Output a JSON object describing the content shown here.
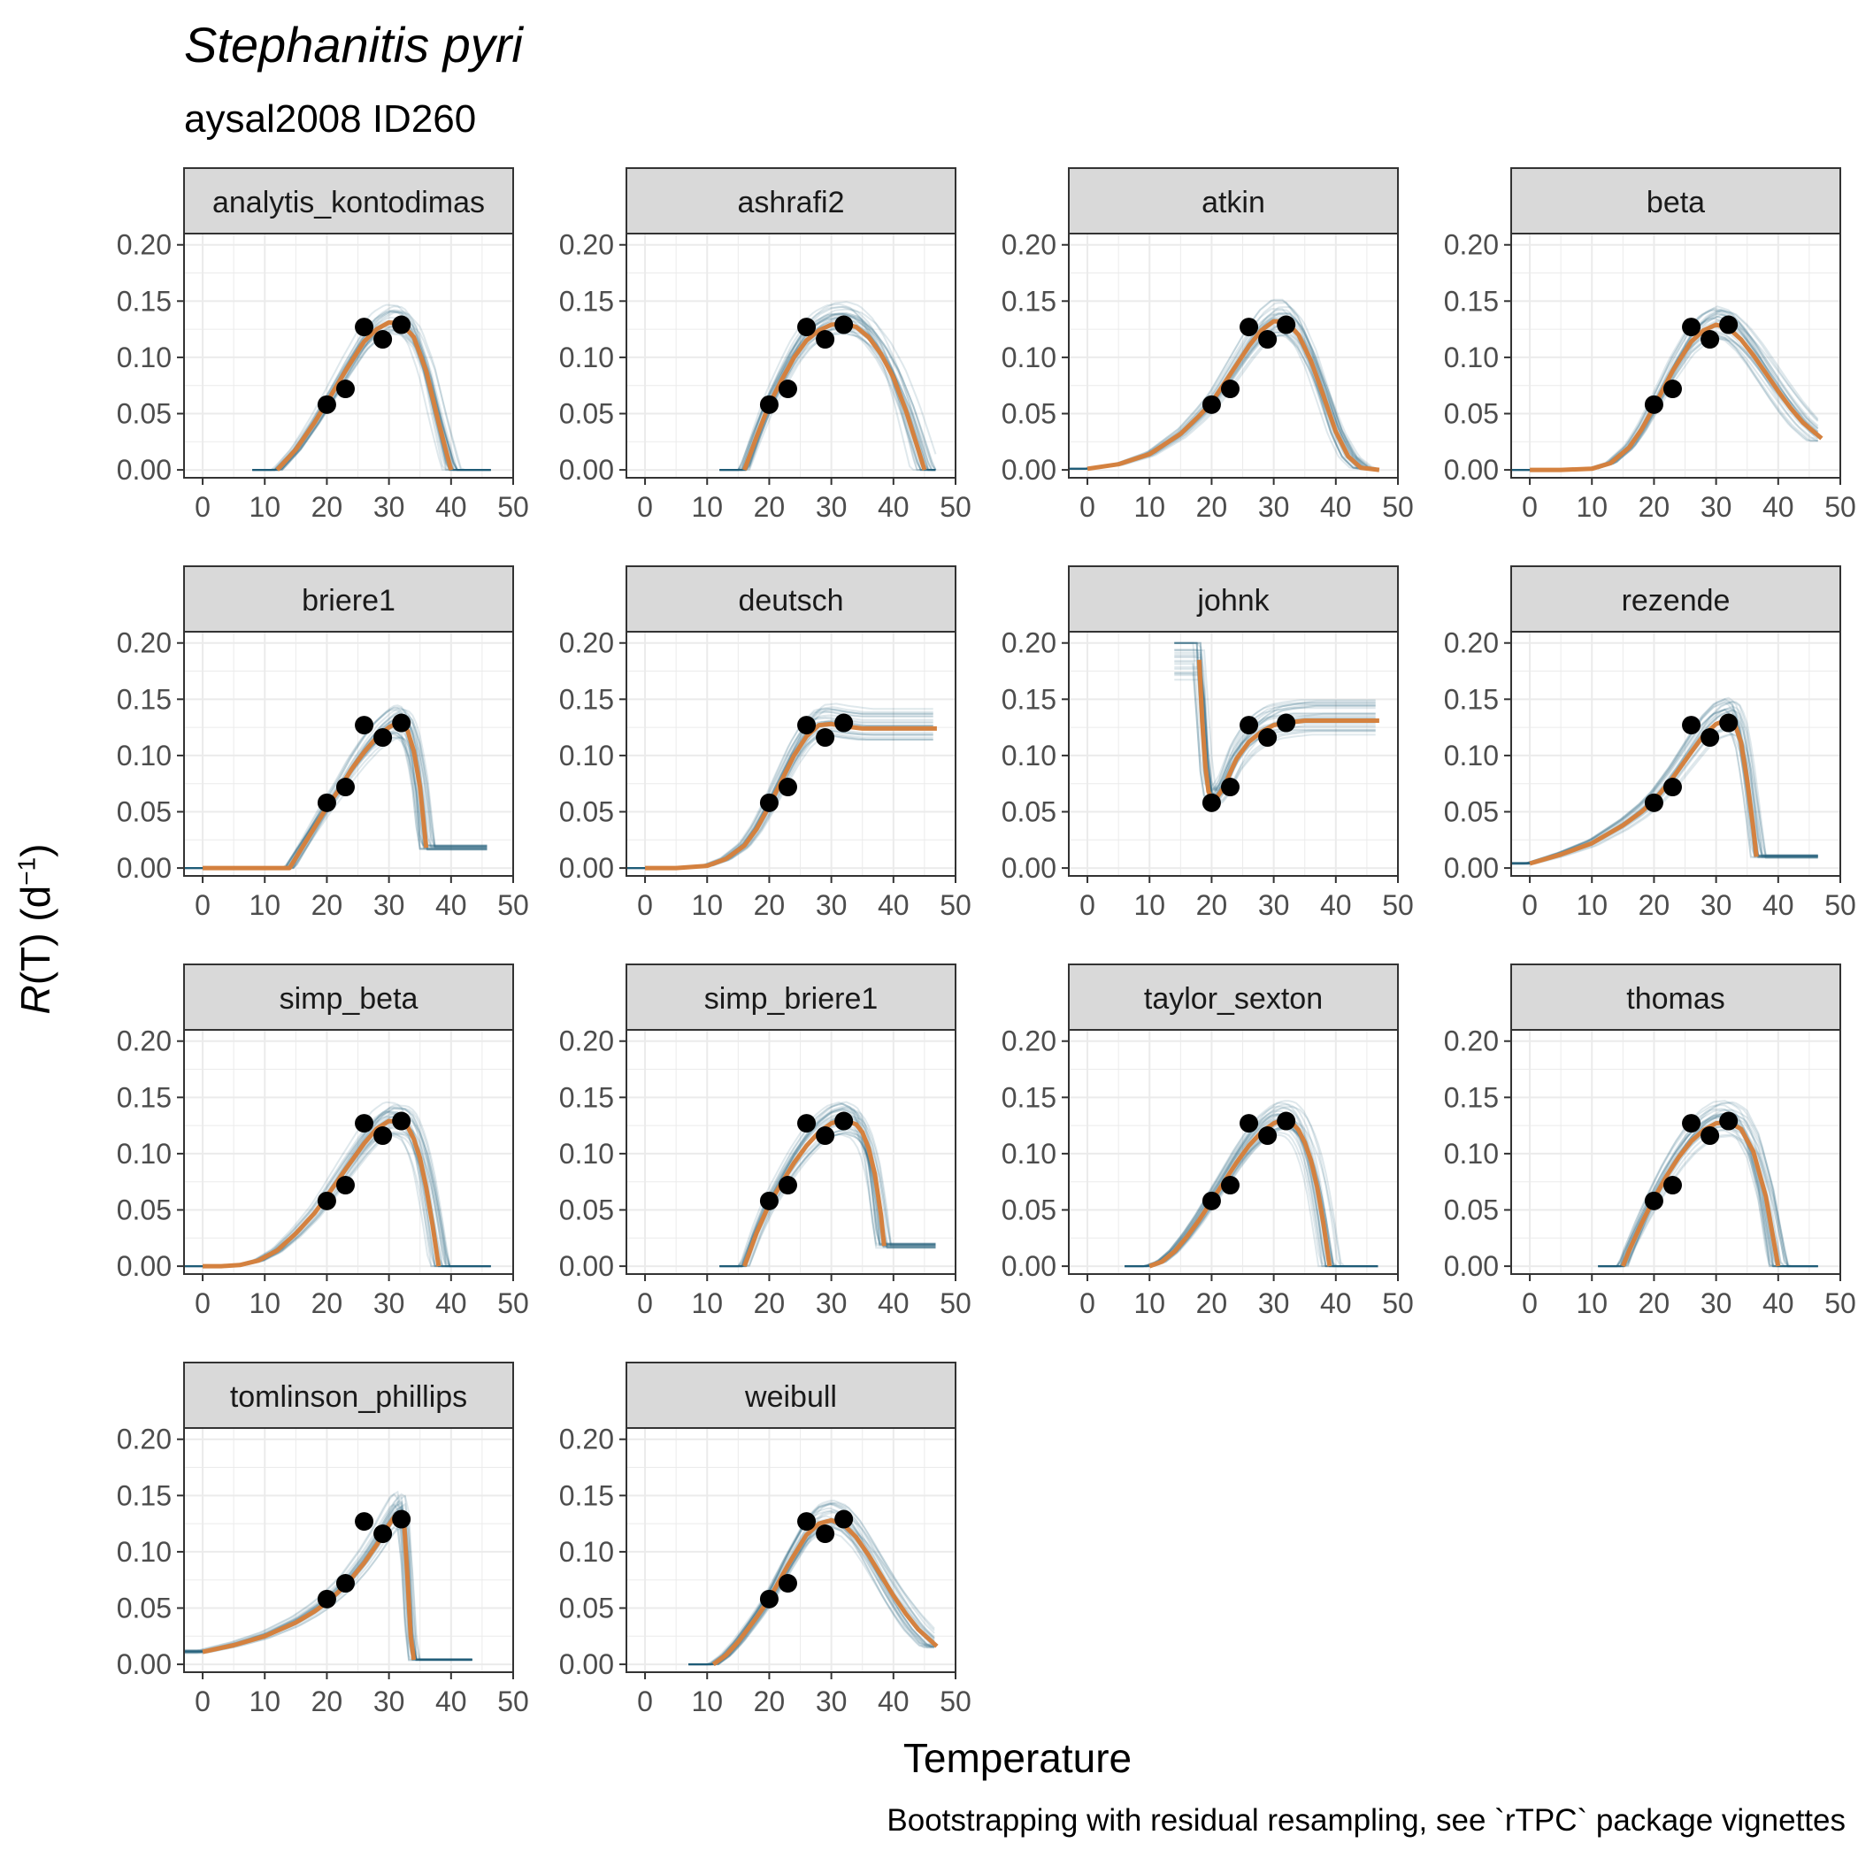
{
  "chart_data": {
    "type": "line",
    "title": "Stephanitis pyri",
    "subtitle": "aysal2008 ID260",
    "xlabel": "Temperature",
    "ylabel_parts": {
      "var": "R",
      "rest": "(T) (d",
      "sup": "−1",
      "close": ")"
    },
    "caption": "Bootstrapping with residual resampling, see `rTPC` package vignettes",
    "xlim": [
      -3,
      50
    ],
    "ylim": [
      -0.007,
      0.21
    ],
    "x_ticks": [
      0,
      10,
      20,
      30,
      40,
      50
    ],
    "x_tick_labels": [
      "0",
      "10",
      "20",
      "30",
      "40",
      "50"
    ],
    "y_ticks": [
      0.0,
      0.05,
      0.1,
      0.15,
      0.2
    ],
    "y_tick_labels": [
      "0.00",
      "0.05",
      "0.10",
      "0.15",
      "0.20"
    ],
    "grid": true,
    "colors": {
      "fit": "#d4813f",
      "bootstrap": "#1f5b78",
      "points": "#000000",
      "strip_bg": "#d9d9d9",
      "grid": "#ebebeb"
    },
    "observed_points": {
      "x": [
        20,
        23,
        26,
        29,
        32
      ],
      "y": [
        0.058,
        0.072,
        0.127,
        0.116,
        0.129
      ]
    },
    "panels": [
      {
        "name": "analytis_kontodimas",
        "fit": {
          "x": [
            12,
            15,
            18,
            20,
            23,
            26,
            28,
            30,
            32,
            34,
            36,
            38,
            40
          ],
          "y": [
            0,
            0.018,
            0.042,
            0.06,
            0.088,
            0.114,
            0.125,
            0.131,
            0.13,
            0.118,
            0.088,
            0.042,
            0
          ]
        }
      },
      {
        "name": "ashrafi2",
        "fit": {
          "x": [
            16,
            18,
            20,
            22,
            24,
            26,
            28,
            30,
            32,
            34,
            36,
            38,
            40,
            42,
            44,
            45
          ],
          "y": [
            0,
            0.03,
            0.058,
            0.08,
            0.1,
            0.115,
            0.124,
            0.129,
            0.13,
            0.127,
            0.118,
            0.103,
            0.082,
            0.053,
            0.018,
            0
          ]
        }
      },
      {
        "name": "atkin",
        "fit": {
          "x": [
            0,
            5,
            10,
            15,
            18,
            20,
            23,
            26,
            28,
            30,
            32,
            34,
            36,
            38,
            40,
            42,
            44,
            47
          ],
          "y": [
            0.001,
            0.005,
            0.014,
            0.032,
            0.048,
            0.06,
            0.085,
            0.11,
            0.124,
            0.132,
            0.132,
            0.12,
            0.097,
            0.066,
            0.034,
            0.012,
            0.002,
            0
          ]
        }
      },
      {
        "name": "beta",
        "fit": {
          "x": [
            0,
            5,
            10,
            13,
            16,
            18,
            20,
            23,
            26,
            28,
            30,
            32,
            34,
            36,
            38,
            40,
            42,
            44,
            47
          ],
          "y": [
            0,
            0,
            0.001,
            0.006,
            0.02,
            0.036,
            0.056,
            0.088,
            0.114,
            0.124,
            0.129,
            0.126,
            0.116,
            0.102,
            0.086,
            0.07,
            0.055,
            0.042,
            0.028
          ]
        }
      },
      {
        "name": "briere1",
        "fit": {
          "x": [
            0,
            5,
            10,
            14,
            16,
            18,
            20,
            22,
            24,
            26,
            28,
            30,
            31,
            32,
            33,
            34,
            35,
            36
          ],
          "y": [
            0,
            0,
            0,
            0,
            0.018,
            0.036,
            0.054,
            0.07,
            0.088,
            0.103,
            0.116,
            0.125,
            0.128,
            0.128,
            0.122,
            0.104,
            0.072,
            0.018
          ]
        }
      },
      {
        "name": "deutsch",
        "fit": {
          "x": [
            0,
            5,
            10,
            13,
            16,
            18,
            20,
            22,
            24,
            26,
            28,
            30,
            32,
            35,
            40,
            47
          ],
          "y": [
            0,
            0,
            0.002,
            0.008,
            0.02,
            0.035,
            0.055,
            0.078,
            0.1,
            0.117,
            0.127,
            0.128,
            0.126,
            0.124,
            0.124,
            0.124
          ]
        }
      },
      {
        "name": "johnk",
        "fit": {
          "x": [
            18,
            18.5,
            19,
            19.5,
            20,
            21,
            22,
            23,
            24,
            26,
            28,
            30,
            32,
            35,
            40,
            47
          ],
          "y": [
            0.185,
            0.13,
            0.09,
            0.068,
            0.062,
            0.064,
            0.072,
            0.085,
            0.097,
            0.112,
            0.121,
            0.127,
            0.129,
            0.131,
            0.131,
            0.131
          ]
        }
      },
      {
        "name": "rezende",
        "fit": {
          "x": [
            0,
            5,
            10,
            15,
            18,
            20,
            23,
            26,
            28,
            30,
            32,
            33,
            34,
            35,
            36,
            36.5
          ],
          "y": [
            0.004,
            0.012,
            0.022,
            0.038,
            0.05,
            0.06,
            0.08,
            0.103,
            0.118,
            0.128,
            0.132,
            0.128,
            0.112,
            0.078,
            0.035,
            0.01
          ]
        }
      },
      {
        "name": "simp_beta",
        "fit": {
          "x": [
            0,
            3,
            6,
            9,
            12,
            15,
            18,
            20,
            23,
            26,
            28,
            30,
            32,
            33,
            34,
            35,
            36,
            37,
            38
          ],
          "y": [
            0,
            0,
            0.001,
            0.005,
            0.014,
            0.029,
            0.047,
            0.062,
            0.086,
            0.109,
            0.122,
            0.129,
            0.128,
            0.124,
            0.113,
            0.096,
            0.07,
            0.037,
            0
          ]
        }
      },
      {
        "name": "simp_briere1",
        "fit": {
          "x": [
            16,
            18,
            20,
            22,
            24,
            26,
            28,
            30,
            32,
            34,
            35,
            36,
            37,
            38,
            38.5
          ],
          "y": [
            0,
            0.03,
            0.055,
            0.074,
            0.092,
            0.107,
            0.119,
            0.127,
            0.13,
            0.126,
            0.119,
            0.105,
            0.082,
            0.045,
            0.018
          ]
        }
      },
      {
        "name": "taylor_sexton",
        "fit": {
          "x": [
            10,
            12,
            14,
            16,
            18,
            20,
            22,
            24,
            26,
            28,
            30,
            31,
            32,
            33,
            34,
            35,
            36,
            37,
            38,
            39
          ],
          "y": [
            0,
            0.004,
            0.013,
            0.026,
            0.041,
            0.058,
            0.075,
            0.092,
            0.107,
            0.119,
            0.127,
            0.129,
            0.129,
            0.127,
            0.121,
            0.11,
            0.094,
            0.07,
            0.038,
            0
          ]
        }
      },
      {
        "name": "thomas",
        "fit": {
          "x": [
            15,
            16,
            18,
            20,
            22,
            24,
            26,
            28,
            30,
            32,
            34,
            36,
            38,
            40
          ],
          "y": [
            0,
            0.014,
            0.038,
            0.06,
            0.08,
            0.097,
            0.111,
            0.121,
            0.127,
            0.128,
            0.122,
            0.102,
            0.062,
            0
          ]
        }
      },
      {
        "name": "tomlinson_phillips",
        "fit": {
          "x": [
            0,
            5,
            10,
            15,
            18,
            20,
            23,
            26,
            28,
            30,
            31,
            32,
            32.5,
            33,
            33.5,
            34
          ],
          "y": [
            0.011,
            0.017,
            0.025,
            0.037,
            0.047,
            0.055,
            0.07,
            0.09,
            0.106,
            0.124,
            0.132,
            0.135,
            0.12,
            0.075,
            0.025,
            0.004
          ]
        }
      },
      {
        "name": "weibull",
        "fit": {
          "x": [
            11,
            13,
            15,
            18,
            20,
            23,
            26,
            28,
            30,
            32,
            34,
            36,
            38,
            40,
            42,
            44,
            47
          ],
          "y": [
            0,
            0.008,
            0.02,
            0.042,
            0.058,
            0.088,
            0.115,
            0.125,
            0.128,
            0.124,
            0.113,
            0.097,
            0.079,
            0.061,
            0.045,
            0.031,
            0.016
          ]
        }
      }
    ]
  }
}
